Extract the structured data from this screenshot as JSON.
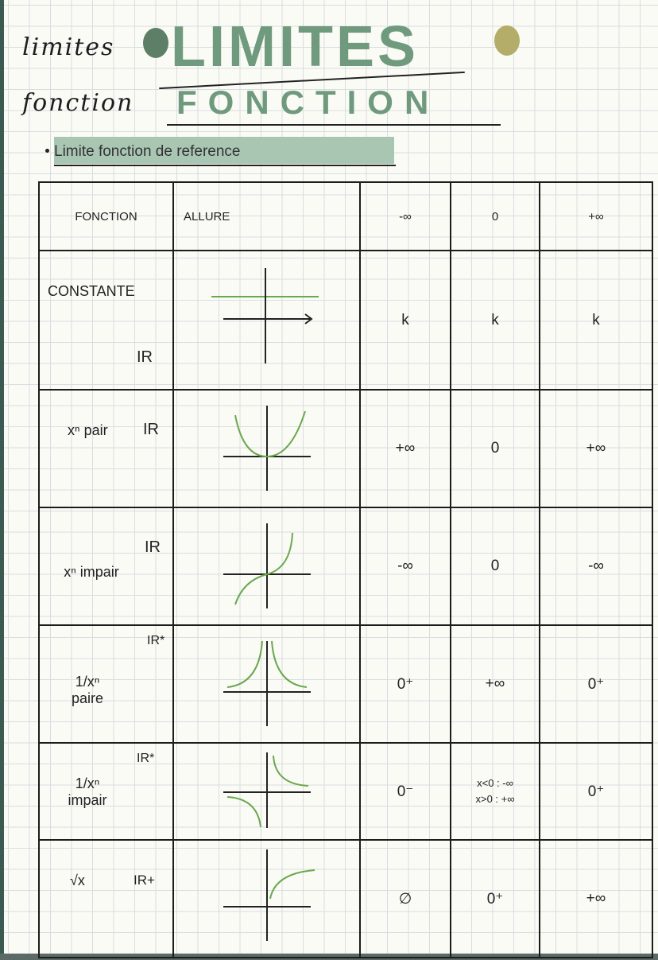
{
  "title": {
    "line1": "LIMITES",
    "line1_script": "limites",
    "line2": "FONCTION",
    "line2_script": "fonction"
  },
  "subtitle": "Limite fonction de reference",
  "colors": {
    "accent_green": "#6f9a7e",
    "highlight": "#a9c6b3",
    "curve": "#6aa84f"
  },
  "table": {
    "headers": [
      "FONCTION",
      "ALLURE",
      "-∞",
      "0",
      "+∞"
    ],
    "rows": [
      {
        "name": "CONSTANTE",
        "domain": "IR",
        "graph": "constant-line-icon",
        "minus_inf": "k",
        "zero": "k",
        "plus_inf": "k"
      },
      {
        "name": "xⁿ pair",
        "domain": "IR",
        "graph": "parabola-icon",
        "minus_inf": "+∞",
        "zero": "0",
        "plus_inf": "+∞"
      },
      {
        "name": "xⁿ impair",
        "domain": "IR",
        "graph": "cubic-icon",
        "minus_inf": "-∞",
        "zero": "0",
        "plus_inf": "-∞"
      },
      {
        "name": "1/xⁿ paire",
        "domain": "IR*",
        "graph": "even-reciprocal-icon",
        "minus_inf": "0⁺",
        "zero": "+∞",
        "plus_inf": "0⁺"
      },
      {
        "name": "1/xⁿ impair",
        "domain": "IR*",
        "graph": "odd-reciprocal-icon",
        "minus_inf": "0⁻",
        "zero_lines": [
          "x<0 : -∞",
          "x>0 : +∞"
        ],
        "plus_inf": "0⁺"
      },
      {
        "name": "√x",
        "domain": "IR+",
        "graph": "sqrt-curve-icon",
        "minus_inf": "∅",
        "zero": "0⁺",
        "plus_inf": "+∞"
      }
    ]
  }
}
